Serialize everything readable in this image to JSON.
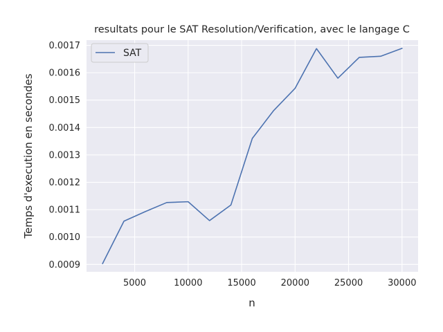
{
  "chart_data": {
    "type": "line",
    "title": "resultats pour le SAT Resolution/Verification, avec le langage C",
    "xlabel": "n",
    "ylabel": "Temps d'execution en secondes",
    "x": [
      2000,
      4000,
      6000,
      8000,
      10000,
      12000,
      14000,
      16000,
      18000,
      20000,
      22000,
      24000,
      26000,
      28000,
      30000
    ],
    "series": [
      {
        "name": "SAT",
        "color": "#4c72b0",
        "values": [
          0.000903,
          0.001058,
          0.001093,
          0.001126,
          0.001129,
          0.00106,
          0.001117,
          0.00136,
          0.001462,
          0.001543,
          0.001688,
          0.00158,
          0.001656,
          0.00166,
          0.001689
        ]
      }
    ],
    "xlim": [
      500,
      31500
    ],
    "ylim": [
      0.000873,
      0.001719
    ],
    "xticks": [
      5000,
      10000,
      15000,
      20000,
      25000,
      30000
    ],
    "yticks": [
      0.0009,
      0.001,
      0.0011,
      0.0012,
      0.0013,
      0.0014,
      0.0015,
      0.0016,
      0.0017
    ],
    "xtick_labels": [
      "5000",
      "10000",
      "15000",
      "20000",
      "25000",
      "30000"
    ],
    "ytick_labels": [
      "0.0009",
      "0.0010",
      "0.0011",
      "0.0012",
      "0.0013",
      "0.0014",
      "0.0015",
      "0.0016",
      "0.0017"
    ],
    "grid": true,
    "background": "#eaeaf2",
    "legend": {
      "position": "top-left",
      "entries": [
        "SAT"
      ]
    }
  }
}
